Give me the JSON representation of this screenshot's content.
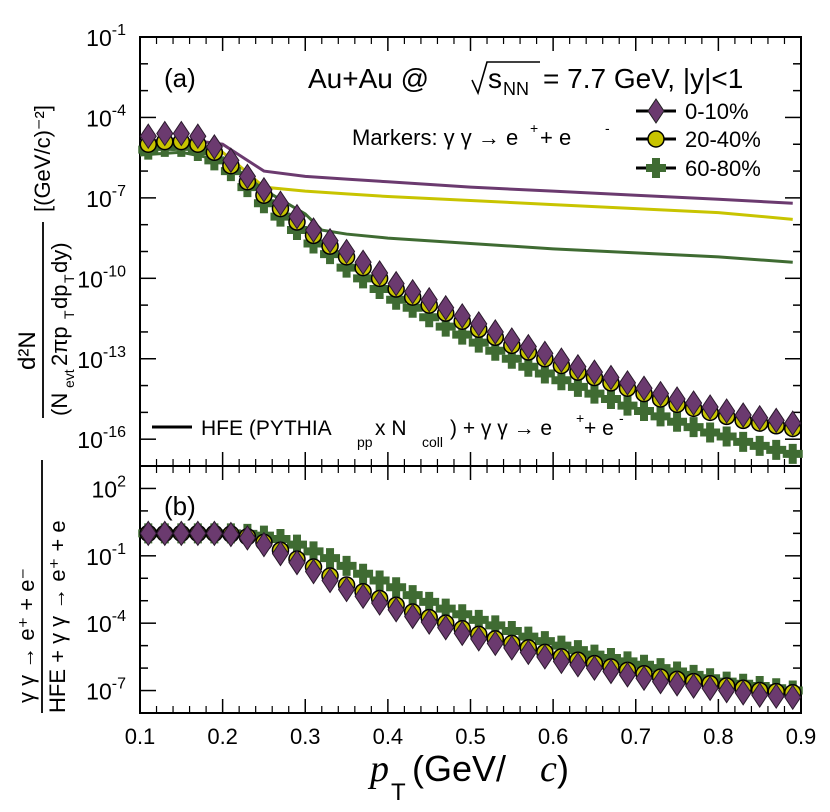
{
  "colors": {
    "cent_0_10": "#6b3a6f",
    "cent_20_40": "#c8c400",
    "cent_60_80": "#3f6b32",
    "curve_0_10": "#6b3a6f",
    "curve_20_40": "#c8c400",
    "curve_60_80": "#3f6b32"
  },
  "text": {
    "panel_a_label": "(a)",
    "panel_b_label": "(b)",
    "title_system": "Au+Au @",
    "title_energy": "s",
    "title_energy_sub": "NN",
    "title_rest": "= 7.7 GeV, |y|<1",
    "markers_label": "Markers: γ γ → e",
    "markers_label_sup1": "+",
    "markers_label_mid": " + e",
    "markers_label_sup2": "-",
    "legend_line_main": "HFE (PYTHIA",
    "legend_line_sub1": "pp",
    "legend_line_mid": " x N",
    "legend_line_sub2": "coll",
    "legend_line_end": ") + γ γ → e",
    "legend_line_sup1": "+",
    "legend_line_tail": " + e",
    "legend_line_sup2": "-",
    "legend_0_10": "0-10%",
    "legend_20_40": "20-40%",
    "legend_60_80": "60-80%",
    "xaxis_label": "p",
    "xaxis_label_sub": "T",
    "xaxis_label_unit": " (GeV/",
    "xaxis_label_c": "c",
    "xaxis_label_close": ")",
    "ylabel_a_num": "d²N",
    "ylabel_a_den": "(N",
    "ylabel_a_den_sub1": "evt",
    "ylabel_a_den_mid": "2πp",
    "ylabel_a_den_sub2": "T",
    "ylabel_a_den_mid2": "dp",
    "ylabel_a_den_sub3": "T",
    "ylabel_a_den_end": "dy)",
    "ylabel_a_unit": "[(GeV/c)⁻²]",
    "ylabel_b_num": "γ γ → e⁺ + e⁻",
    "ylabel_b_den": "HFE + γ γ → e⁺ + e"
  },
  "chart_data": [
    {
      "type": "scatter",
      "panel": "a",
      "title": "Au+Au @ sqrt(s_NN) = 7.7 GeV, |y|<1",
      "xlabel": "p_T (GeV/c)",
      "ylabel": "d2N/(N_evt 2π pT dpT dy) [(GeV/c)^-2]",
      "xlim": [
        0.1,
        0.9
      ],
      "ylim_log10": [
        -17,
        -1
      ],
      "yticks": [
        "10^-1",
        "10^-4",
        "10^-7",
        "10^-10",
        "10^-13",
        "10^-16"
      ],
      "x": [
        0.11,
        0.13,
        0.15,
        0.17,
        0.19,
        0.21,
        0.23,
        0.25,
        0.27,
        0.29,
        0.31,
        0.33,
        0.35,
        0.37,
        0.39,
        0.41,
        0.43,
        0.45,
        0.47,
        0.49,
        0.51,
        0.53,
        0.55,
        0.57,
        0.59,
        0.61,
        0.63,
        0.65,
        0.67,
        0.69,
        0.71,
        0.73,
        0.75,
        0.77,
        0.79,
        0.81,
        0.83,
        0.85,
        0.87,
        0.89
      ],
      "series": [
        {
          "name": "0-10%",
          "marker": "diamond",
          "log10_values": [
            -4.7,
            -4.6,
            -4.6,
            -4.7,
            -5.1,
            -5.6,
            -6.2,
            -6.7,
            -7.2,
            -7.7,
            -8.2,
            -8.6,
            -9.0,
            -9.4,
            -9.8,
            -10.2,
            -10.5,
            -10.8,
            -11.1,
            -11.4,
            -11.7,
            -12.0,
            -12.3,
            -12.55,
            -12.8,
            -13.05,
            -13.3,
            -13.5,
            -13.7,
            -13.9,
            -14.1,
            -14.3,
            -14.5,
            -14.65,
            -14.8,
            -14.95,
            -15.1,
            -15.2,
            -15.3,
            -15.4
          ]
        },
        {
          "name": "20-40%",
          "marker": "circle",
          "log10_values": [
            -5.0,
            -4.9,
            -4.9,
            -5.0,
            -5.3,
            -5.8,
            -6.4,
            -6.9,
            -7.4,
            -7.9,
            -8.4,
            -8.8,
            -9.2,
            -9.6,
            -10.0,
            -10.4,
            -10.7,
            -11.0,
            -11.3,
            -11.6,
            -11.9,
            -12.2,
            -12.5,
            -12.75,
            -13.0,
            -13.25,
            -13.5,
            -13.7,
            -13.9,
            -14.1,
            -14.3,
            -14.5,
            -14.7,
            -14.85,
            -15.0,
            -15.15,
            -15.3,
            -15.4,
            -15.5,
            -15.6
          ]
        },
        {
          "name": "60-80%",
          "marker": "cross",
          "log10_values": [
            -5.2,
            -5.1,
            -5.1,
            -5.25,
            -5.6,
            -6.0,
            -6.6,
            -7.2,
            -7.7,
            -8.2,
            -8.7,
            -9.1,
            -9.6,
            -10.0,
            -10.4,
            -10.8,
            -11.1,
            -11.45,
            -11.8,
            -12.1,
            -12.4,
            -12.7,
            -13.0,
            -13.3,
            -13.55,
            -13.8,
            -14.05,
            -14.3,
            -14.5,
            -14.75,
            -14.95,
            -15.15,
            -15.35,
            -15.55,
            -15.75,
            -15.9,
            -16.1,
            -16.25,
            -16.4,
            -16.55
          ]
        }
      ],
      "curves": [
        {
          "name": "0-10%",
          "x": [
            0.1,
            0.15,
            0.2,
            0.22,
            0.25,
            0.3,
            0.35,
            0.4,
            0.5,
            0.6,
            0.7,
            0.8,
            0.89
          ],
          "log10_values": [
            -4.9,
            -4.8,
            -5.0,
            -5.4,
            -6.0,
            -6.2,
            -6.3,
            -6.4,
            -6.6,
            -6.75,
            -6.9,
            -7.05,
            -7.2
          ]
        },
        {
          "name": "20-40%",
          "x": [
            0.1,
            0.15,
            0.2,
            0.22,
            0.25,
            0.3,
            0.35,
            0.4,
            0.5,
            0.6,
            0.7,
            0.8,
            0.89
          ],
          "log10_values": [
            -5.2,
            -5.1,
            -5.3,
            -5.8,
            -6.6,
            -6.75,
            -6.85,
            -6.95,
            -7.1,
            -7.25,
            -7.4,
            -7.55,
            -7.8
          ]
        },
        {
          "name": "60-80%",
          "x": [
            0.1,
            0.15,
            0.2,
            0.22,
            0.25,
            0.3,
            0.32,
            0.35,
            0.4,
            0.5,
            0.6,
            0.7,
            0.8,
            0.89
          ],
          "log10_values": [
            -5.4,
            -5.3,
            -5.6,
            -6.0,
            -6.7,
            -7.6,
            -8.2,
            -8.35,
            -8.5,
            -8.7,
            -8.9,
            -9.05,
            -9.2,
            -9.4
          ]
        }
      ]
    },
    {
      "type": "scatter",
      "panel": "b",
      "xlabel": "p_T (GeV/c)",
      "ylabel": "γγ→e+e- / (HFE + γγ→e+e-)",
      "xlim": [
        0.1,
        0.9
      ],
      "xticks": [
        "0.1",
        "0.2",
        "0.3",
        "0.4",
        "0.5",
        "0.6",
        "0.7",
        "0.8",
        "0.9"
      ],
      "ylim_log10": [
        -8,
        3
      ],
      "yticks": [
        "10^2",
        "10^-1",
        "10^-4",
        "10^-7"
      ],
      "x": [
        0.11,
        0.13,
        0.15,
        0.17,
        0.19,
        0.21,
        0.23,
        0.25,
        0.27,
        0.29,
        0.31,
        0.33,
        0.35,
        0.37,
        0.39,
        0.41,
        0.43,
        0.45,
        0.47,
        0.49,
        0.51,
        0.53,
        0.55,
        0.57,
        0.59,
        0.61,
        0.63,
        0.65,
        0.67,
        0.69,
        0.71,
        0.73,
        0.75,
        0.77,
        0.79,
        0.81,
        0.83,
        0.85,
        0.87,
        0.89
      ],
      "series": [
        {
          "name": "0-10%",
          "marker": "diamond",
          "log10_values": [
            0,
            0,
            0,
            0,
            0,
            -0.05,
            -0.2,
            -0.5,
            -0.9,
            -1.3,
            -1.7,
            -2.1,
            -2.5,
            -2.8,
            -3.1,
            -3.4,
            -3.7,
            -3.95,
            -4.2,
            -4.45,
            -4.7,
            -4.9,
            -5.1,
            -5.3,
            -5.5,
            -5.7,
            -5.85,
            -6.0,
            -6.15,
            -6.3,
            -6.45,
            -6.6,
            -6.7,
            -6.8,
            -6.9,
            -7.0,
            -7.1,
            -7.2,
            -7.25,
            -7.3
          ]
        },
        {
          "name": "20-40%",
          "marker": "circle",
          "log10_values": [
            0,
            0,
            0,
            0,
            0,
            -0.03,
            -0.15,
            -0.4,
            -0.75,
            -1.15,
            -1.5,
            -1.9,
            -2.3,
            -2.6,
            -2.9,
            -3.2,
            -3.5,
            -3.75,
            -4.0,
            -4.25,
            -4.5,
            -4.7,
            -4.9,
            -5.1,
            -5.3,
            -5.5,
            -5.65,
            -5.8,
            -5.95,
            -6.1,
            -6.25,
            -6.4,
            -6.5,
            -6.6,
            -6.7,
            -6.8,
            -6.9,
            -7.0,
            -7.05,
            -7.1
          ]
        },
        {
          "name": "60-80%",
          "marker": "cross",
          "log10_values": [
            0,
            0,
            0,
            0,
            0,
            0,
            -0.02,
            -0.1,
            -0.25,
            -0.5,
            -0.8,
            -1.1,
            -1.45,
            -1.8,
            -2.1,
            -2.4,
            -2.75,
            -3.05,
            -3.35,
            -3.6,
            -3.85,
            -4.1,
            -4.35,
            -4.6,
            -4.8,
            -5.0,
            -5.2,
            -5.4,
            -5.55,
            -5.7,
            -5.85,
            -6.0,
            -6.15,
            -6.3,
            -6.45,
            -6.6,
            -6.7,
            -6.8,
            -6.9,
            -7.0
          ]
        }
      ]
    }
  ]
}
